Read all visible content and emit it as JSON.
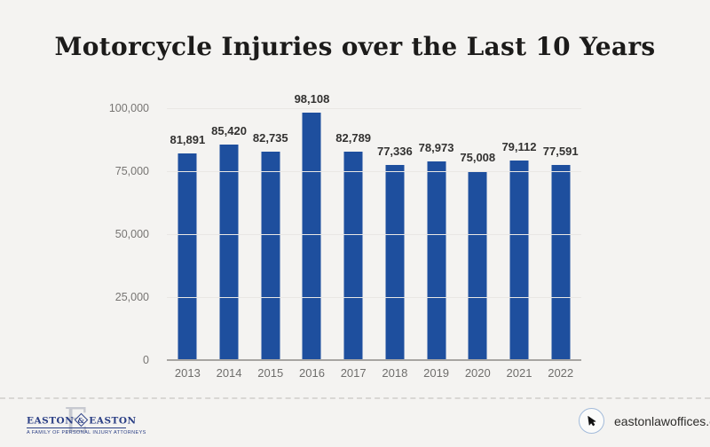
{
  "title": "Motorcycle Injuries over the Last 10 Years",
  "chart_data": {
    "type": "bar",
    "title": "Motorcycle Injuries over the Last 10 Years",
    "categories": [
      "2013",
      "2014",
      "2015",
      "2016",
      "2017",
      "2018",
      "2019",
      "2020",
      "2021",
      "2022"
    ],
    "values": [
      81891,
      85420,
      82735,
      98108,
      82789,
      77336,
      78973,
      75008,
      79112,
      77591
    ],
    "value_labels": [
      "81,891",
      "85,420",
      "82,735",
      "98,108",
      "82,789",
      "77,336",
      "78,973",
      "75,008",
      "79,112",
      "77,591"
    ],
    "xlabel": "",
    "ylabel": "",
    "ylim": [
      0,
      100000
    ],
    "yticks": [
      {
        "label": "100,000",
        "value": 100000
      },
      {
        "label": "75,000",
        "value": 75000
      },
      {
        "label": "50,000",
        "value": 50000
      },
      {
        "label": "25,000",
        "value": 25000
      },
      {
        "label": "0",
        "value": 0
      }
    ],
    "grid": "horizontal",
    "legend": "none",
    "bar_color": "#1e4f9e"
  },
  "footer": {
    "logo": {
      "big_letter": "E",
      "name_left": "EASTON",
      "ampersand": "&",
      "name_right": "EASTON",
      "tagline": "A FAMILY OF PERSONAL INJURY ATTORNEYS"
    },
    "website": "eastonlawoffices.com"
  },
  "colors": {
    "background": "#f4f3f1",
    "bar": "#1e4f9e",
    "title_text": "#1c1b1a",
    "value_label": "#323130",
    "axis_label": "#6f6e6c",
    "gridline": "#e9e7e4",
    "axis_line": "#a7a5a2",
    "divider_dash": "#d9d7d4",
    "logo_navy": "#2b3f85",
    "logo_big_letter": "#c7c9d0",
    "circle_border": "#a3bbda"
  }
}
